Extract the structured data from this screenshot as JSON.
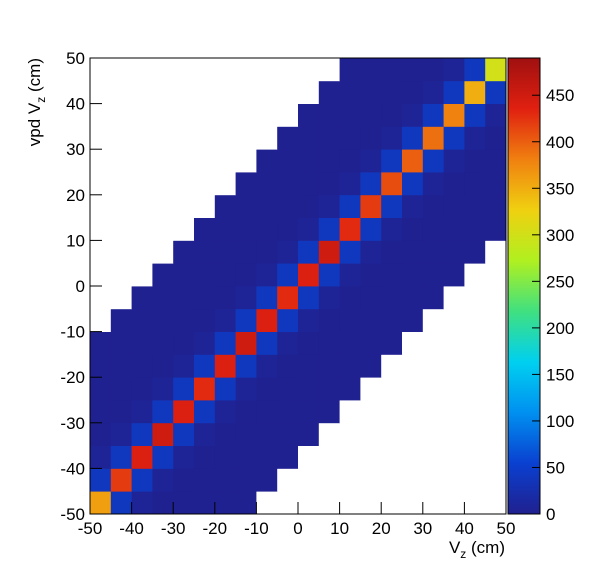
{
  "chart_data": {
    "type": "heatmap",
    "x_label": [
      "V",
      "z",
      " (cm)"
    ],
    "y_label": [
      "vpd V",
      "z",
      " (cm)"
    ],
    "xbins": [
      -50,
      -45,
      -40,
      -35,
      -30,
      -25,
      -20,
      -15,
      -10,
      -5,
      0,
      5,
      10,
      15,
      20,
      25,
      30,
      35,
      40,
      45,
      50
    ],
    "ybins": [
      -50,
      -45,
      -40,
      -35,
      -30,
      -25,
      -20,
      -15,
      -10,
      -5,
      0,
      5,
      10,
      15,
      20,
      25,
      30,
      35,
      40,
      45,
      50
    ],
    "z": [
      [
        360,
        40,
        6,
        2,
        1,
        1,
        1,
        1,
        0,
        0,
        0,
        0,
        0,
        0,
        0,
        0,
        0,
        0,
        0,
        0
      ],
      [
        40,
        420,
        40,
        6,
        2,
        1,
        1,
        1,
        1,
        0,
        0,
        0,
        0,
        0,
        0,
        0,
        0,
        0,
        0,
        0
      ],
      [
        6,
        40,
        440,
        40,
        6,
        2,
        1,
        1,
        1,
        1,
        0,
        0,
        0,
        0,
        0,
        0,
        0,
        0,
        0,
        0
      ],
      [
        2,
        6,
        40,
        450,
        40,
        6,
        2,
        1,
        1,
        1,
        1,
        0,
        0,
        0,
        0,
        0,
        0,
        0,
        0,
        0
      ],
      [
        1,
        2,
        6,
        40,
        440,
        40,
        6,
        2,
        1,
        1,
        1,
        1,
        0,
        0,
        0,
        0,
        0,
        0,
        0,
        0
      ],
      [
        1,
        1,
        2,
        6,
        40,
        430,
        40,
        6,
        2,
        1,
        1,
        1,
        1,
        0,
        0,
        0,
        0,
        0,
        0,
        0
      ],
      [
        1,
        1,
        1,
        2,
        6,
        40,
        440,
        40,
        6,
        2,
        1,
        1,
        1,
        1,
        0,
        0,
        0,
        0,
        0,
        0
      ],
      [
        1,
        1,
        1,
        1,
        2,
        6,
        40,
        450,
        40,
        6,
        2,
        1,
        1,
        1,
        1,
        0,
        0,
        0,
        0,
        0
      ],
      [
        0,
        1,
        1,
        1,
        1,
        2,
        6,
        40,
        440,
        40,
        6,
        2,
        1,
        1,
        1,
        1,
        0,
        0,
        0,
        0
      ],
      [
        0,
        0,
        1,
        1,
        1,
        1,
        2,
        6,
        40,
        430,
        40,
        6,
        2,
        1,
        1,
        1,
        1,
        0,
        0,
        0
      ],
      [
        0,
        0,
        0,
        1,
        1,
        1,
        1,
        2,
        6,
        40,
        440,
        40,
        6,
        2,
        1,
        1,
        1,
        1,
        0,
        0
      ],
      [
        0,
        0,
        0,
        0,
        1,
        1,
        1,
        1,
        2,
        6,
        40,
        450,
        40,
        6,
        2,
        1,
        1,
        1,
        1,
        0
      ],
      [
        0,
        0,
        0,
        0,
        0,
        1,
        1,
        1,
        1,
        2,
        6,
        40,
        430,
        40,
        6,
        2,
        1,
        1,
        1,
        1
      ],
      [
        0,
        0,
        0,
        0,
        0,
        0,
        1,
        1,
        1,
        1,
        2,
        6,
        40,
        420,
        40,
        6,
        2,
        1,
        1,
        1
      ],
      [
        0,
        0,
        0,
        0,
        0,
        0,
        0,
        1,
        1,
        1,
        1,
        2,
        6,
        40,
        410,
        40,
        6,
        2,
        1,
        1
      ],
      [
        0,
        0,
        0,
        0,
        0,
        0,
        0,
        0,
        1,
        1,
        1,
        1,
        2,
        6,
        40,
        400,
        40,
        6,
        2,
        1
      ],
      [
        0,
        0,
        0,
        0,
        0,
        0,
        0,
        0,
        0,
        1,
        1,
        1,
        1,
        2,
        6,
        40,
        390,
        40,
        6,
        2
      ],
      [
        0,
        0,
        0,
        0,
        0,
        0,
        0,
        0,
        0,
        0,
        1,
        1,
        1,
        1,
        2,
        6,
        40,
        380,
        40,
        6
      ],
      [
        0,
        0,
        0,
        0,
        0,
        0,
        0,
        0,
        0,
        0,
        0,
        1,
        1,
        1,
        1,
        2,
        6,
        40,
        350,
        40
      ],
      [
        0,
        0,
        0,
        0,
        0,
        0,
        0,
        0,
        0,
        0,
        0,
        0,
        1,
        1,
        1,
        1,
        2,
        6,
        40,
        300
      ]
    ],
    "xlim": [
      -50,
      50
    ],
    "ylim": [
      -50,
      50
    ],
    "xticks": [
      -50,
      -40,
      -30,
      -20,
      -10,
      0,
      10,
      20,
      30,
      40,
      50
    ],
    "yticks": [
      -50,
      -40,
      -30,
      -20,
      -10,
      0,
      10,
      20,
      30,
      40,
      50
    ],
    "zlim": [
      0,
      490
    ],
    "zticks": [
      0,
      50,
      100,
      150,
      200,
      250,
      300,
      350,
      400,
      450
    ],
    "colorscale": [
      "#20208f",
      "#0a40d0",
      "#0090f0",
      "#00d0f0",
      "#40e080",
      "#b0f020",
      "#f0d010",
      "#f08010",
      "#e02010",
      "#a01010"
    ]
  }
}
